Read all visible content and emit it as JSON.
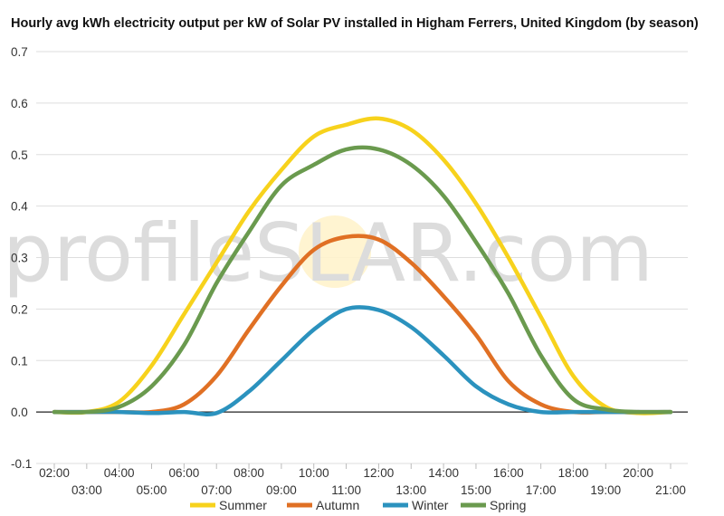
{
  "chart_data": {
    "type": "line",
    "title": "Hourly avg kWh electricity output per kW of Solar PV installed in Higham Ferrers, United Kingdom (by season)",
    "xlabel": "",
    "ylabel": "",
    "ylim": [
      -0.1,
      0.7
    ],
    "yticks": [
      "-0.1",
      "0.0",
      "0.1",
      "0.2",
      "0.3",
      "0.4",
      "0.5",
      "0.6",
      "0.7"
    ],
    "grid": true,
    "legend_position": "bottom",
    "categories": [
      "02:00",
      "03:00",
      "04:00",
      "05:00",
      "06:00",
      "07:00",
      "08:00",
      "09:00",
      "10:00",
      "11:00",
      "12:00",
      "13:00",
      "14:00",
      "15:00",
      "16:00",
      "17:00",
      "18:00",
      "19:00",
      "20:00",
      "21:00"
    ],
    "series": [
      {
        "name": "Summer",
        "color": "#f7d21c",
        "values": [
          0.0,
          0.0,
          0.02,
          0.09,
          0.19,
          0.29,
          0.39,
          0.47,
          0.535,
          0.558,
          0.57,
          0.548,
          0.49,
          0.405,
          0.3,
          0.185,
          0.07,
          0.01,
          -0.002,
          0.0
        ]
      },
      {
        "name": "Autumn",
        "color": "#e07024",
        "values": [
          0.0,
          0.0,
          0.0,
          0.0,
          0.015,
          0.07,
          0.16,
          0.245,
          0.315,
          0.34,
          0.335,
          0.29,
          0.225,
          0.15,
          0.06,
          0.015,
          0.0,
          0.0,
          0.0,
          0.0
        ]
      },
      {
        "name": "Winter",
        "color": "#2b92be",
        "values": [
          0.0,
          0.0,
          0.0,
          -0.002,
          0.0,
          -0.002,
          0.04,
          0.1,
          0.16,
          0.2,
          0.198,
          0.165,
          0.11,
          0.05,
          0.015,
          0.0,
          0.0,
          0.0,
          0.0,
          0.0
        ]
      },
      {
        "name": "Spring",
        "color": "#6a9a4e",
        "values": [
          0.0,
          0.0,
          0.01,
          0.05,
          0.13,
          0.25,
          0.35,
          0.44,
          0.48,
          0.51,
          0.51,
          0.48,
          0.42,
          0.33,
          0.23,
          0.11,
          0.025,
          0.005,
          0.0,
          0.0
        ]
      }
    ]
  },
  "watermark": {
    "left": "profile",
    "right": "S",
    "rest": "LAR.com"
  }
}
